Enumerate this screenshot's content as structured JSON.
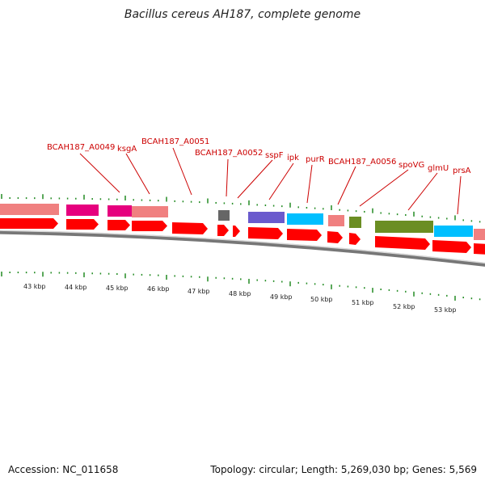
{
  "header": {
    "title": "Bacillus cereus AH187, complete genome"
  },
  "footer": {
    "accession": "Accession: NC_011658",
    "stats": "Topology: circular; Length: 5,269,030 bp; Genes: 5,569"
  },
  "gene_labels": [
    "BCAH187_A0049",
    "ksgA",
    "BCAH187_A0051",
    "BCAH187_A0052",
    "sspF",
    "ipk",
    "purR",
    "BCAH187_A0056",
    "spoVG",
    "glmU",
    "prsA"
  ],
  "kbp_labels": [
    "43 kbp",
    "44 kbp",
    "45 kbp",
    "46 kbp",
    "47 kbp",
    "48 kbp",
    "49 kbp",
    "50 kbp",
    "51 kbp",
    "52 kbp",
    "53 kbp"
  ],
  "colors": {
    "label": "#cc0000",
    "cds": "#ff0000",
    "pink": "#f08080",
    "magenta": "#e6007e",
    "purple": "#6a5acd",
    "cyan": "#00bfff",
    "olive": "#6b8e23",
    "gray": "#666666",
    "tick": "#228b22"
  }
}
